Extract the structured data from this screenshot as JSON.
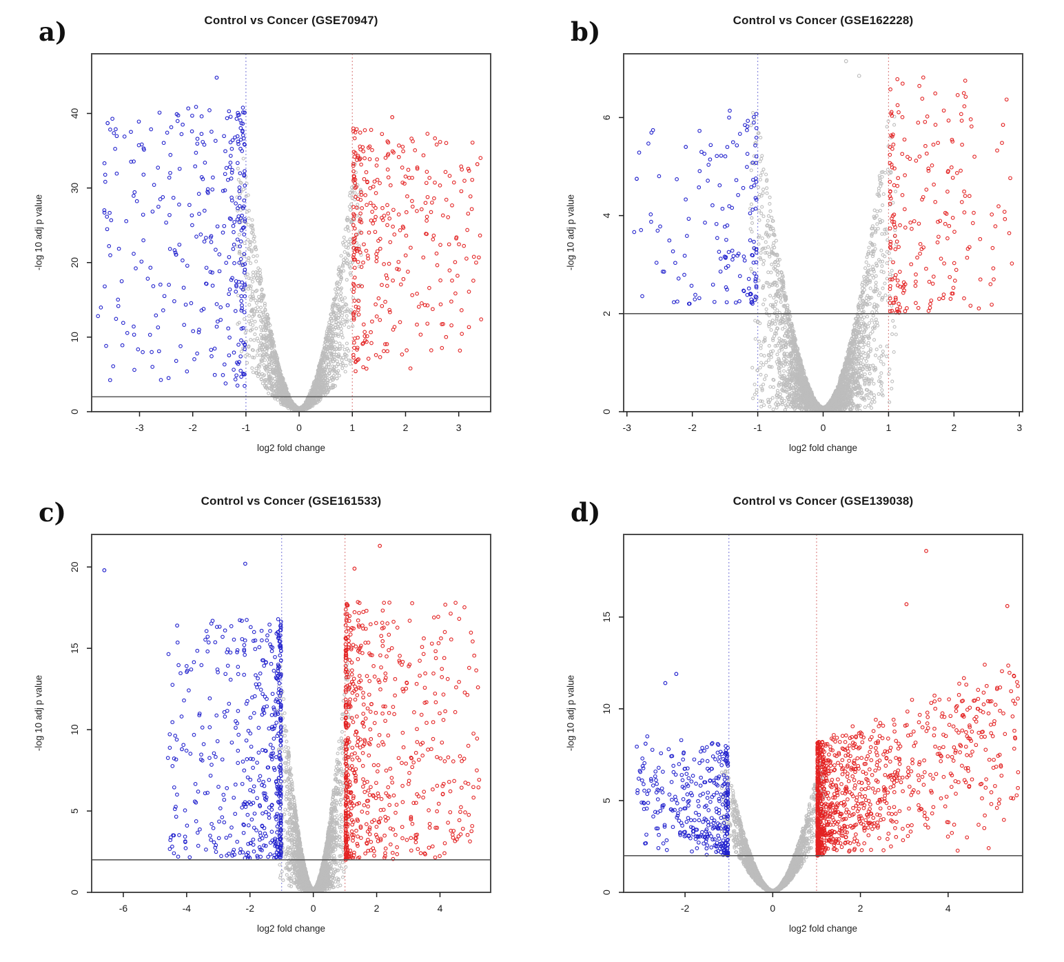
{
  "figure": {
    "background": "#ffffff"
  },
  "style": {
    "blue": "#2121cd",
    "red": "#e32222",
    "gray": "#bdbdbd",
    "frame": "#4a4a4a",
    "threshold_color": "#555555",
    "tick_color": "#1b1b1b",
    "point_radius_gray": 2.0,
    "point_radius_colored": 2.3
  },
  "chart_data": [
    {
      "type": "scatter",
      "subtype": "volcano",
      "letter": "a)",
      "title": "Control vs Concer (GSE70947)",
      "xlabel": "log2 fold change",
      "ylabel": "-log 10 adj p value",
      "xlim": [
        -3.9,
        3.6
      ],
      "ylim": [
        0,
        48
      ],
      "xticks": [
        -3,
        -2,
        -1,
        0,
        1,
        2,
        3
      ],
      "yticks": [
        0,
        10,
        20,
        30,
        40
      ],
      "threshold_line_y": 2,
      "cutoff_lines": [
        {
          "x": -1,
          "color": "#8a8ade"
        },
        {
          "x": 1,
          "color": "#de8a8a"
        }
      ],
      "points_gray": {
        "n": 2200,
        "xsigma": 0.55,
        "xcut": 1.05,
        "ymax": 34,
        "band": 0.8
      },
      "points_blue": {
        "n": 320,
        "side": -1,
        "xmin": 1.02,
        "xmax": 3.85,
        "xskew": 2.3,
        "ymin": 3,
        "ymax": 41,
        "yskew": 0.95,
        "trend": 0.25,
        "ymax_far": 38
      },
      "points_red": {
        "n": 330,
        "side": 1,
        "xmin": 1.02,
        "xmax": 3.45,
        "xskew": 2.0,
        "ymin": 5,
        "ymax": 38,
        "yskew": 0.9,
        "trend": 0.3,
        "ymax_far": 34
      },
      "outliers": [
        {
          "x": -3.6,
          "y": 38.7,
          "c": "blue"
        },
        {
          "x": -1.55,
          "y": 44.8,
          "c": "blue"
        },
        {
          "x": -2.3,
          "y": 39.9,
          "c": "blue"
        },
        {
          "x": 3.35,
          "y": 33.2,
          "c": "red"
        },
        {
          "x": 1.75,
          "y": 39.5,
          "c": "red"
        }
      ],
      "seed": 1011
    },
    {
      "type": "scatter",
      "subtype": "volcano",
      "letter": "b)",
      "title": "Control vs Concer (GSE162228)",
      "xlabel": "log2 fold change",
      "ylabel": "-log 10 adj p value",
      "xlim": [
        -3.05,
        3.05
      ],
      "ylim": [
        0,
        7.3
      ],
      "xticks": [
        -3,
        -2,
        -1,
        0,
        1,
        2,
        3
      ],
      "yticks": [
        0,
        2,
        4,
        6
      ],
      "threshold_line_y": 2,
      "cutoff_lines": [
        {
          "x": -1,
          "color": "#8a8ade"
        },
        {
          "x": 1,
          "color": "#de8a8a"
        }
      ],
      "points_gray": {
        "n": 3200,
        "xsigma": 0.5,
        "xcut": 1.0,
        "ymax": 6.1,
        "band": 1.0
      },
      "points_blue": {
        "n": 145,
        "side": -1,
        "xmin": 1.02,
        "xmax": 2.9,
        "xskew": 2.6,
        "ymin": 2.2,
        "ymax": 6.2,
        "yskew": 1.5,
        "trend": 0,
        "ymax_far": 6.2
      },
      "points_red": {
        "n": 210,
        "side": 1,
        "xmin": 1.02,
        "xmax": 2.9,
        "xskew": 2.2,
        "ymin": 2.0,
        "ymax": 6.9,
        "yskew": 1.4,
        "trend": 0.15,
        "ymax_far": 6.5
      },
      "outliers": [
        {
          "x": 0.35,
          "y": 7.15,
          "c": "gray"
        },
        {
          "x": 0.55,
          "y": 6.85,
          "c": "gray"
        },
        {
          "x": 2.75,
          "y": 5.85,
          "c": "red"
        },
        {
          "x": -2.1,
          "y": 5.4,
          "c": "blue"
        },
        {
          "x": -2.85,
          "y": 4.75,
          "c": "blue"
        }
      ],
      "seed": 2022
    },
    {
      "type": "scatter",
      "subtype": "volcano",
      "letter": "c)",
      "title": "Control vs Concer (GSE161533)",
      "xlabel": "log2 fold change",
      "ylabel": "-log 10 adj p value",
      "xlim": [
        -7.0,
        5.6
      ],
      "ylim": [
        0,
        22
      ],
      "xticks": [
        -6,
        -4,
        -2,
        0,
        2,
        4
      ],
      "yticks": [
        0,
        5,
        10,
        15,
        20
      ],
      "threshold_line_y": 2,
      "cutoff_lines": [
        {
          "x": -1,
          "color": "#8a8ade"
        },
        {
          "x": 1,
          "color": "#de8a8a"
        }
      ],
      "points_gray": {
        "n": 2800,
        "xsigma": 0.45,
        "xcut": 1.05,
        "ymax": 14.3,
        "band": 0.97
      },
      "points_blue": {
        "n": 500,
        "side": -1,
        "xmin": 1.02,
        "xmax": 4.6,
        "xskew": 2.7,
        "ymin": 2.1,
        "ymax": 16.8,
        "yskew": 1.3,
        "trend": 0,
        "ymax_far": 16.8
      },
      "points_red": {
        "n": 640,
        "side": 1,
        "xmin": 1.02,
        "xmax": 5.25,
        "xskew": 2.9,
        "ymin": 2.0,
        "ymax": 18.0,
        "yskew": 1.35,
        "trend": 0.1,
        "ymax_far": 14
      },
      "outliers": [
        {
          "x": -6.6,
          "y": 19.8,
          "c": "blue"
        },
        {
          "x": -4.3,
          "y": 16.4,
          "c": "blue"
        },
        {
          "x": -4.15,
          "y": 8.8,
          "c": "blue"
        },
        {
          "x": -2.15,
          "y": 20.2,
          "c": "blue"
        },
        {
          "x": 2.1,
          "y": 21.3,
          "c": "red"
        },
        {
          "x": 1.3,
          "y": 19.9,
          "c": "red"
        },
        {
          "x": 5.2,
          "y": 12.6,
          "c": "red"
        }
      ],
      "seed": 3033
    },
    {
      "type": "scatter",
      "subtype": "volcano",
      "letter": "d)",
      "title": "Control vs Concer (GSE139038)",
      "xlabel": "log2 fold change",
      "ylabel": "-log 10 adj p value",
      "xlim": [
        -3.4,
        5.7
      ],
      "ylim": [
        0,
        19.5
      ],
      "xticks": [
        -2,
        0,
        2,
        4
      ],
      "yticks": [
        0,
        5,
        10,
        15
      ],
      "threshold_line_y": 2,
      "cutoff_lines": [
        {
          "x": -1,
          "color": "#8a8ade"
        },
        {
          "x": 1,
          "color": "#de8a8a"
        }
      ],
      "points_gray": {
        "n": 2400,
        "xsigma": 0.5,
        "xcut": 1.05,
        "ymax": 7.0,
        "band": 0.55
      },
      "points_blue": {
        "n": 360,
        "side": -1,
        "xmin": 1.02,
        "xmax": 3.1,
        "xskew": 2.5,
        "ymin": 2.0,
        "ymax": 8.0,
        "yskew": 1.6,
        "trend": 0.35,
        "ymax_far": 12.5
      },
      "points_red": {
        "n": 1050,
        "side": 1,
        "xmin": 1.02,
        "xmax": 5.6,
        "xskew": 3.1,
        "ymin": 2.0,
        "ymax": 8.2,
        "yskew": 1.4,
        "trend": 0.75,
        "ymax_far": 15.5
      },
      "outliers": [
        {
          "x": 3.5,
          "y": 18.6,
          "c": "red"
        },
        {
          "x": 3.05,
          "y": 15.7,
          "c": "red"
        },
        {
          "x": 5.35,
          "y": 15.6,
          "c": "red"
        },
        {
          "x": 5.5,
          "y": 11.8,
          "c": "red"
        },
        {
          "x": 4.95,
          "y": 10.4,
          "c": "red"
        },
        {
          "x": -2.2,
          "y": 11.9,
          "c": "blue"
        },
        {
          "x": -2.45,
          "y": 11.4,
          "c": "blue"
        },
        {
          "x": -2.9,
          "y": 8.1,
          "c": "blue"
        }
      ],
      "seed": 4044
    }
  ]
}
